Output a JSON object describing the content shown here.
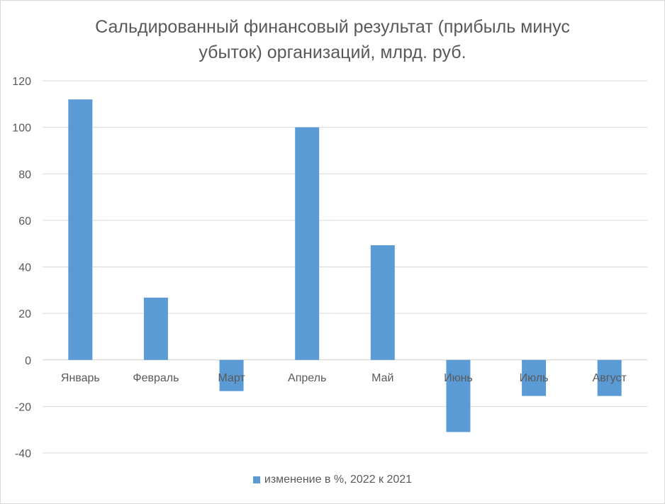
{
  "chart_data": {
    "type": "bar",
    "title": "Сальдированный финансовый результат (прибыль минус\nубыток) организаций, млрд. руб.",
    "categories": [
      "Январь",
      "Февраль",
      "Март",
      "Апрель",
      "Май",
      "Июнь",
      "Июль",
      "Август"
    ],
    "series": [
      {
        "name": "изменение в %, 2022 к 2021",
        "values": [
          112,
          26.8,
          -13.4,
          100,
          49.3,
          -31,
          -15.5,
          -15.5
        ],
        "color": "#5b9bd5"
      }
    ],
    "ylim": [
      -40,
      120
    ],
    "yticks": [
      120,
      100,
      80,
      60,
      40,
      20,
      0,
      -20,
      -40
    ],
    "grid": true,
    "legend_position": "bottom"
  }
}
